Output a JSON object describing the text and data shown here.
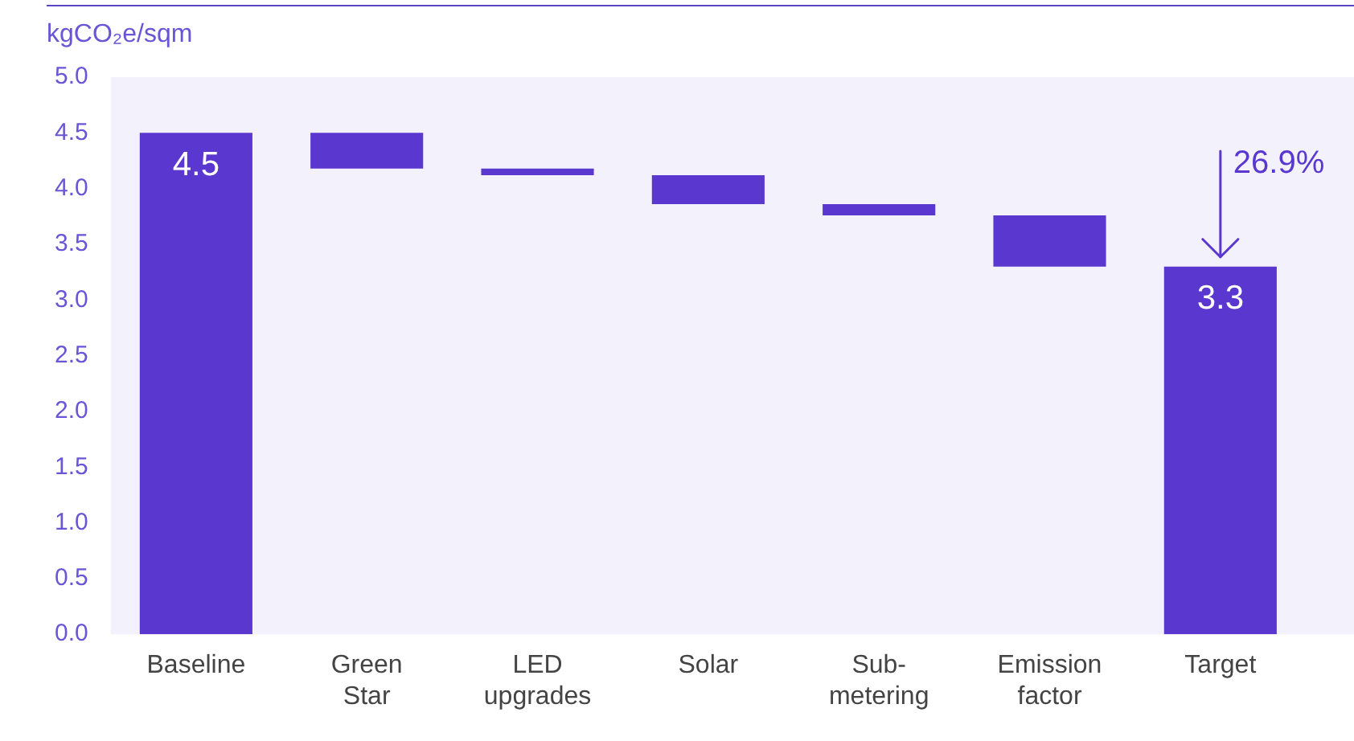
{
  "chart_data": {
    "type": "bar",
    "ylabel": "kgCO₂e/sqm",
    "categories": [
      "Baseline",
      "Green Star",
      "LED upgrades",
      "Solar",
      "Sub-metering",
      "Emission factor",
      "Target"
    ],
    "values": [
      4.5,
      -0.32,
      -0.06,
      -0.26,
      -0.1,
      -0.46,
      3.3
    ],
    "base": [
      null,
      4.5,
      4.18,
      4.12,
      3.86,
      3.76,
      null
    ],
    "color": "#5a37cf",
    "value_labels": [
      "4.5",
      null,
      null,
      null,
      null,
      null,
      "3.3"
    ],
    "annotations": [
      {
        "text": "26.9%",
        "x": "Target",
        "y": 3.3
      }
    ],
    "ylim": [
      0,
      5
    ],
    "yticks": [
      {
        "value": 0,
        "label": "0.0"
      },
      {
        "value": 0.5,
        "label": "0.5"
      },
      {
        "value": 1,
        "label": "1.0"
      },
      {
        "value": 1.5,
        "label": "1.5"
      },
      {
        "value": 2,
        "label": "2.0"
      },
      {
        "value": 2.5,
        "label": "2.5"
      },
      {
        "value": 3,
        "label": "3.0"
      },
      {
        "value": 3.5,
        "label": "3.5"
      },
      {
        "value": 4,
        "label": "4.0"
      },
      {
        "value": 4.5,
        "label": "4.5"
      },
      {
        "value": 5,
        "label": "5.0"
      }
    ],
    "grid": false,
    "legend": false
  }
}
